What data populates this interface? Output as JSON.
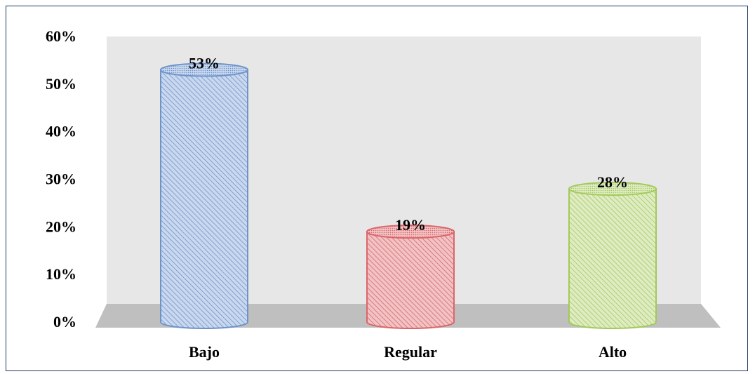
{
  "chart_data": {
    "type": "bar",
    "style": "3d-cylinder",
    "categories": [
      "Bajo",
      "Regular",
      "Alto"
    ],
    "values": [
      53,
      19,
      28
    ],
    "data_labels": [
      "53%",
      "19%",
      "28%"
    ],
    "ylim": [
      0,
      60
    ],
    "yticks": [
      0,
      10,
      20,
      30,
      40,
      50,
      60
    ],
    "ytick_labels": [
      "0%",
      "10%",
      "20%",
      "30%",
      "40%",
      "50%",
      "60%"
    ],
    "grid": false,
    "legend": "none",
    "colors": {
      "bars": [
        "#6f93c9",
        "#d9666b",
        "#a3c95c"
      ],
      "bar_fills": [
        "#c9d8ee",
        "#f1c3c4",
        "#dfecc3"
      ],
      "wall": "#e7e7e7",
      "floor": "#bfbfbf",
      "frame": "#1f3864"
    }
  }
}
